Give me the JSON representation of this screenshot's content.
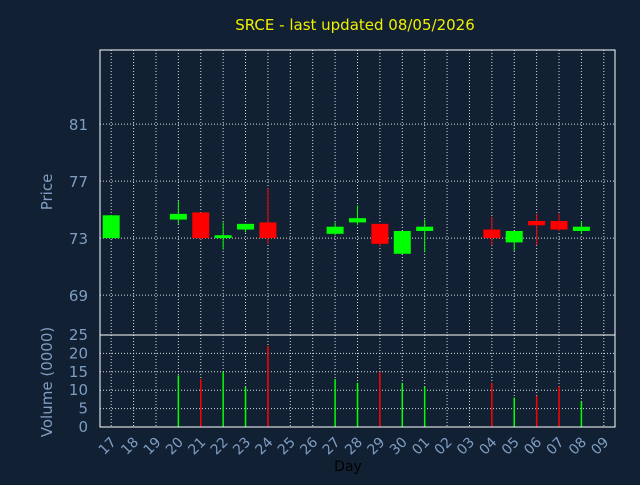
{
  "chart_data": [
    {
      "type": "candlestick",
      "title": "SRCE - last updated 08/05/2026",
      "ylabel": "Price",
      "ylim": [
        66.2,
        86.2
      ],
      "yticks": [
        69,
        73,
        77,
        81
      ],
      "grid": true,
      "categories": [
        "17",
        "18",
        "19",
        "20",
        "21",
        "22",
        "23",
        "24",
        "25",
        "26",
        "27",
        "28",
        "29",
        "30",
        "01",
        "02",
        "03",
        "04",
        "05",
        "06",
        "07",
        "08",
        "09"
      ],
      "candles": [
        {
          "day": "17",
          "open": 73.0,
          "close": 74.6,
          "high": 74.6,
          "low": 73.0
        },
        {
          "day": "20",
          "open": 74.3,
          "close": 74.7,
          "high": 75.6,
          "low": 74.0
        },
        {
          "day": "21",
          "open": 74.8,
          "close": 73.0,
          "high": 74.8,
          "low": 72.9
        },
        {
          "day": "22",
          "open": 73.0,
          "close": 73.2,
          "high": 74.1,
          "low": 72.2
        },
        {
          "day": "23",
          "open": 73.6,
          "close": 74.0,
          "high": 74.0,
          "low": 73.4
        },
        {
          "day": "24",
          "open": 74.1,
          "close": 73.0,
          "high": 76.5,
          "low": 72.6
        },
        {
          "day": "27",
          "open": 73.3,
          "close": 73.8,
          "high": 74.1,
          "low": 73.2
        },
        {
          "day": "28",
          "open": 74.1,
          "close": 74.4,
          "high": 75.3,
          "low": 73.9
        },
        {
          "day": "29",
          "open": 74.0,
          "close": 72.6,
          "high": 74.0,
          "low": 72.4
        },
        {
          "day": "30",
          "open": 71.9,
          "close": 73.5,
          "high": 73.5,
          "low": 71.9
        },
        {
          "day": "01",
          "open": 73.5,
          "close": 73.8,
          "high": 74.3,
          "low": 72.0
        },
        {
          "day": "04",
          "open": 73.6,
          "close": 73.0,
          "high": 74.5,
          "low": 72.5
        },
        {
          "day": "05",
          "open": 72.7,
          "close": 73.5,
          "high": 73.5,
          "low": 72.1
        },
        {
          "day": "06",
          "open": 74.2,
          "close": 73.9,
          "high": 74.7,
          "low": 72.5
        },
        {
          "day": "07",
          "open": 74.2,
          "close": 73.6,
          "high": 74.7,
          "low": 73.5
        },
        {
          "day": "08",
          "open": 73.5,
          "close": 73.8,
          "high": 74.2,
          "low": 73.3
        }
      ],
      "up_color": "#00ff00",
      "down_color": "#ff0000"
    },
    {
      "type": "bar",
      "ylabel": "Volume (0000)",
      "xlabel": "Day",
      "ylim": [
        0,
        25
      ],
      "yticks": [
        0,
        5,
        10,
        15,
        20,
        25
      ],
      "grid": true,
      "categories": [
        "17",
        "18",
        "19",
        "20",
        "21",
        "22",
        "23",
        "24",
        "25",
        "26",
        "27",
        "28",
        "29",
        "30",
        "01",
        "02",
        "03",
        "04",
        "05",
        "06",
        "07",
        "08",
        "09"
      ],
      "bars": [
        {
          "day": "20",
          "value": 14.0,
          "direction": "up"
        },
        {
          "day": "21",
          "value": 13.0,
          "direction": "down"
        },
        {
          "day": "22",
          "value": 15.0,
          "direction": "up"
        },
        {
          "day": "23",
          "value": 11.0,
          "direction": "up"
        },
        {
          "day": "24",
          "value": 22.0,
          "direction": "down"
        },
        {
          "day": "27",
          "value": 13.0,
          "direction": "up"
        },
        {
          "day": "28",
          "value": 12.0,
          "direction": "up"
        },
        {
          "day": "29",
          "value": 15.0,
          "direction": "down"
        },
        {
          "day": "30",
          "value": 12.0,
          "direction": "up"
        },
        {
          "day": "01",
          "value": 11.0,
          "direction": "up"
        },
        {
          "day": "04",
          "value": 12.0,
          "direction": "down"
        },
        {
          "day": "05",
          "value": 8.0,
          "direction": "up"
        },
        {
          "day": "06",
          "value": 8.5,
          "direction": "down"
        },
        {
          "day": "07",
          "value": 11.0,
          "direction": "down"
        },
        {
          "day": "08",
          "value": 7.0,
          "direction": "up"
        }
      ],
      "up_color": "#00ff00",
      "down_color": "#ff0000"
    }
  ],
  "colors": {
    "background": "#112033",
    "title": "#f0f000",
    "axis_text": "#7f9ec2",
    "grid": "#ffffff"
  }
}
